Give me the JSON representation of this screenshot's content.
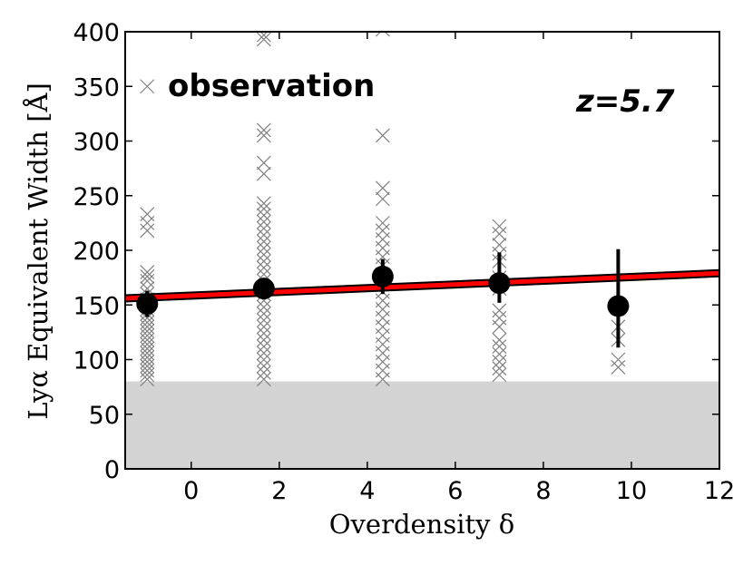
{
  "chart_data": {
    "type": "scatter",
    "title": "",
    "xlabel": "Overdensity δ",
    "ylabel": "Lyα Equivalent Width [Å]",
    "xlim": [
      -1.5,
      12
    ],
    "ylim": [
      0,
      400
    ],
    "xticks": [
      0,
      2,
      4,
      6,
      8,
      10,
      12
    ],
    "yticks": [
      0,
      50,
      100,
      150,
      200,
      250,
      300,
      350,
      400
    ],
    "grid": false,
    "annotations": {
      "observation": "observation",
      "redshift": "z=5.7"
    },
    "excluded_region": {
      "y_from": 0,
      "y_to": 80,
      "color": "#d3d3d3"
    },
    "fit_line": {
      "x": [
        -1.5,
        12
      ],
      "y": [
        156,
        179
      ],
      "color": "#ff0000"
    },
    "binned_means": [
      {
        "x": -1.0,
        "y": 151,
        "err_low": 12,
        "err_high": 12
      },
      {
        "x": 1.65,
        "y": 165,
        "err_low": 6,
        "err_high": 6
      },
      {
        "x": 4.35,
        "y": 176,
        "err_low": 16,
        "err_high": 16
      },
      {
        "x": 7.0,
        "y": 170,
        "err_low": 18,
        "err_high": 28
      },
      {
        "x": 9.7,
        "y": 149,
        "err_low": 38,
        "err_high": 52
      }
    ],
    "individual_points": [
      {
        "x": -1.0,
        "y": [
          350,
          233,
          225,
          218,
          180,
          176,
          172,
          165,
          160,
          155,
          150,
          146,
          142,
          138,
          134,
          130,
          126,
          122,
          118,
          114,
          110,
          106,
          102,
          98,
          94,
          90,
          86,
          82
        ]
      },
      {
        "x": 1.65,
        "y": [
          397,
          393,
          310,
          305,
          280,
          270,
          243,
          238,
          232,
          226,
          220,
          214,
          208,
          202,
          196,
          190,
          184,
          178,
          172,
          166,
          160,
          154,
          148,
          142,
          136,
          130,
          124,
          118,
          112,
          106,
          100,
          94,
          88,
          82
        ]
      },
      {
        "x": 4.35,
        "y": [
          402,
          305,
          257,
          247,
          225,
          218,
          210,
          202,
          194,
          186,
          178,
          170,
          162,
          154,
          146,
          138,
          130,
          122,
          114,
          106,
          98,
          90,
          82
        ]
      },
      {
        "x": 7.0,
        "y": [
          222,
          215,
          205,
          197,
          190,
          175,
          165,
          145,
          138,
          130,
          118,
          112,
          105,
          98,
          92,
          86
        ]
      },
      {
        "x": 9.7,
        "y": [
          130,
          118,
          100,
          93
        ]
      }
    ]
  }
}
